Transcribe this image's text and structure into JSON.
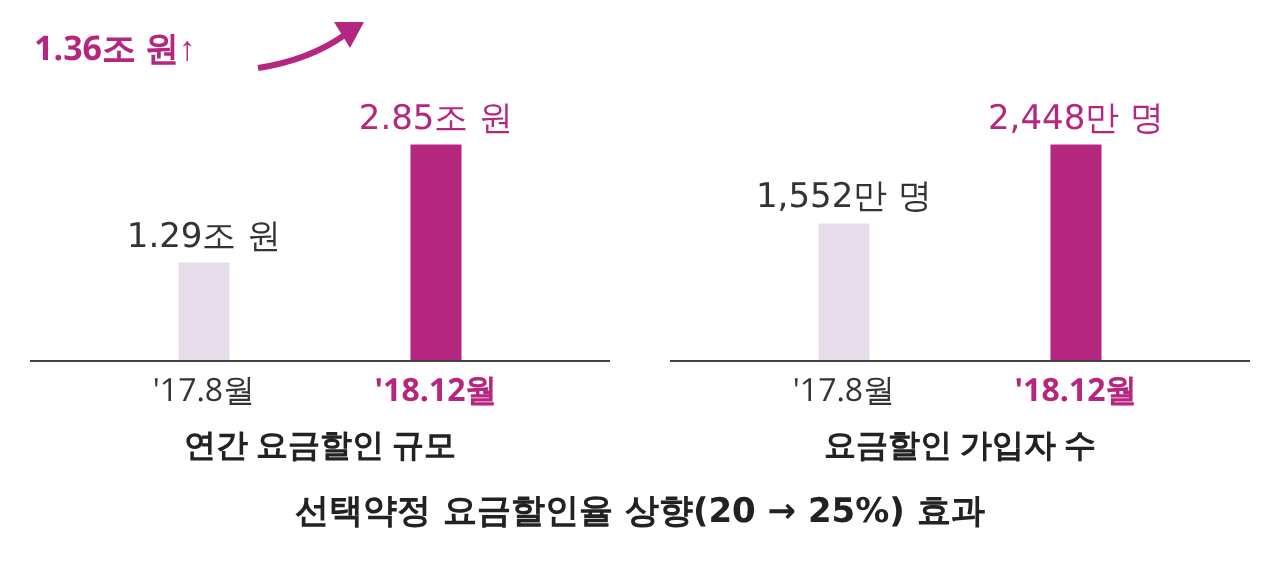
{
  "chart_data": [
    {
      "type": "bar",
      "xlabel": "연간 요금할인 규모",
      "categories": [
        "'17.8월",
        "'18.12월"
      ],
      "values": [
        1.29,
        2.85
      ],
      "colors": [
        "#e6dcea",
        "#b5267f"
      ],
      "value_labels": [
        "1.29조 원",
        "2.85조 원"
      ],
      "annotations": [
        "1.36조 원↑",
        "선택약정 요금할인율 상향(20 → 25%) 효과"
      ]
    },
    {
      "type": "bar",
      "xlabel": "요금할인 가입자 수",
      "categories": [
        "'17.8월",
        "'18.12월"
      ],
      "values": [
        1552,
        2448
      ],
      "colors": [
        "#e6dcea",
        "#b5267f"
      ],
      "value_labels": [
        "1,552만 명",
        "2,448만 명"
      ]
    }
  ]
}
